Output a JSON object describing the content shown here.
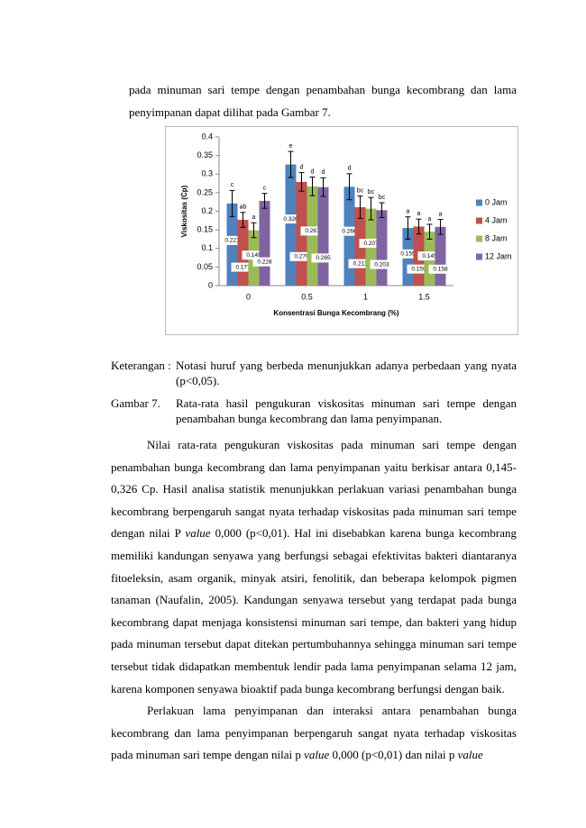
{
  "document": {
    "intro": "pada minuman sari tempe dengan penambahan bunga kecombrang dan lama penyimpanan dapat dilihat pada Gambar 7.",
    "note": {
      "label": "Keterangan :",
      "text": "Notasi huruf yang berbeda menunjukkan adanya perbedaan yang nyata (p<0,05)."
    },
    "caption": {
      "label": "Gambar 7.",
      "text": "Rata-rata hasil pengukuran viskositas minuman sari tempe dengan penambahan bunga kecombrang dan lama penyimpanan."
    },
    "paragraphs": [
      {
        "runs": [
          {
            "text": "Nilai rata-rata pengukuran viskositas pada minuman sari tempe dengan penambahan bunga kecombrang dan lama penyimpanan yaitu berkisar antara 0,145-0,326 Cp. Hasil analisa statistik menunjukkan perlakuan variasi penambahan bunga kecombrang berpengaruh sangat nyata terhadap viskositas pada minuman sari tempe dengan nilai P "
          },
          {
            "text": "value",
            "italic": true
          },
          {
            "text": " 0,000 (p<0,01). Hal ini disebabkan karena bunga kecombrang memiliki kandungan senyawa yang berfungsi sebagai efektivitas bakteri diantaranya fitoeleksin, asam organik, minyak atsiri, fenolitik, dan beberapa kelompok pigmen tanaman (Naufalin, 2005). Kandungan senyawa tersebut yang terdapat pada bunga kecombrang dapat menjaga konsistensi minuman sari tempe, dan bakteri yang hidup pada minuman tersebut dapat ditekan pertumbuhannya sehingga minuman sari tempe tersebut tidak didapatkan membentuk lendir pada lama penyimpanan selama 12 jam, karena komponen senyawa bioaktif pada bunga kecombrang berfungsi dengan baik."
          }
        ]
      },
      {
        "runs": [
          {
            "text": "Perlakuan lama penyimpanan dan interaksi antara penambahan bunga kecombrang dan lama penyimpanan berpengaruh sangat nyata terhadap viskositas pada minuman sari tempe dengan nilai p "
          },
          {
            "text": "value",
            "italic": true
          },
          {
            "text": " 0,000 (p<0,01) dan nilai p "
          },
          {
            "text": "value",
            "italic": true
          }
        ]
      }
    ]
  },
  "chart_data": {
    "type": "bar",
    "y_label": "Viskositas (Cp)",
    "x_label": "Konsentrasi Bunga Kecombrang (%)",
    "categories": [
      "0",
      "0.5",
      "1",
      "1.5"
    ],
    "ylim": [
      0,
      0.4
    ],
    "yticks": [
      0,
      0.05,
      0.1,
      0.15,
      0.2,
      0.25,
      0.3,
      0.35,
      0.4
    ],
    "legend": "right",
    "series": [
      {
        "name": "0 Jam",
        "color": "#4f81bd",
        "values": [
          0.221,
          0.326,
          0.266,
          0.155
        ],
        "errors": [
          0.035,
          0.035,
          0.035,
          0.03
        ],
        "letters": [
          "c",
          "e",
          "d",
          "a"
        ]
      },
      {
        "name": "4 Jam",
        "color": "#c0504d",
        "values": [
          0.177,
          0.279,
          0.211,
          0.159
        ],
        "errors": [
          0.02,
          0.025,
          0.03,
          0.02
        ],
        "letters": [
          "ab",
          "d",
          "bc",
          "a"
        ]
      },
      {
        "name": "8 Jam",
        "color": "#9bbb59",
        "values": [
          0.149,
          0.267,
          0.207,
          0.145
        ],
        "errors": [
          0.02,
          0.025,
          0.03,
          0.02
        ],
        "letters": [
          "a",
          "d",
          "bc",
          "a"
        ]
      },
      {
        "name": "12 Jam",
        "color": "#8064a2",
        "values": [
          0.228,
          0.265,
          0.203,
          0.158
        ],
        "errors": [
          0.02,
          0.025,
          0.02,
          0.02
        ],
        "letters": [
          "c",
          "d",
          "bc",
          "a"
        ]
      }
    ]
  }
}
